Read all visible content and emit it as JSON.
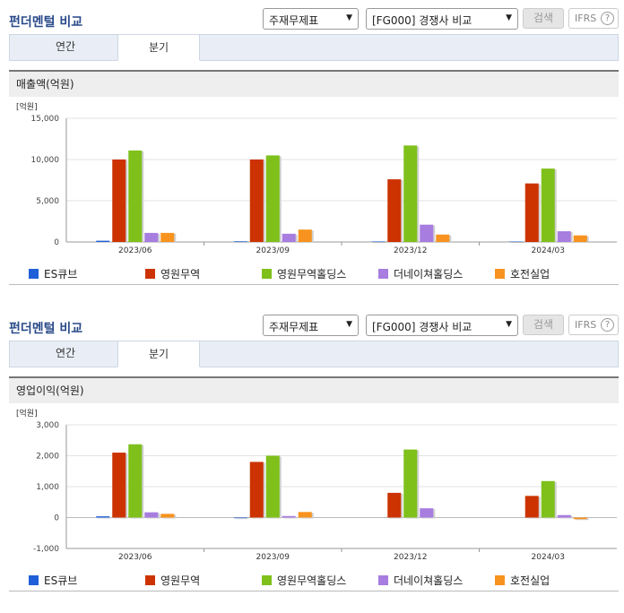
{
  "toolbar": {
    "title": "펀더멘털 비교",
    "select_statement": "주재무제표",
    "select_peer": "[FG000] 경쟁사 비교",
    "search_label": "검색",
    "ifrs_label": "IFRS",
    "help_label": "?"
  },
  "tabs": [
    "연간",
    "분기"
  ],
  "colors": {
    "ES큐브": "#1f5fd8",
    "영원무역": "#cc3300",
    "영원무역홀딩스": "#7fc01b",
    "더네이쳐홀딩스": "#a77de0",
    "호전실업": "#f7931e"
  },
  "chart_data": [
    {
      "type": "bar",
      "title": "매출액(억원)",
      "unit": "[억원]",
      "categories": [
        "2023/06",
        "2023/09",
        "2023/12",
        "2024/03"
      ],
      "ylim": [
        0,
        15000
      ],
      "yticks": [
        0,
        5000,
        10000,
        15000
      ],
      "ytick_labels": [
        "0",
        "5,000",
        "10,000",
        "15,000"
      ],
      "series": [
        {
          "name": "ES큐브",
          "values": [
            150,
            80,
            60,
            50
          ]
        },
        {
          "name": "영원무역",
          "values": [
            10000,
            10000,
            7600,
            7100
          ]
        },
        {
          "name": "영원무역홀딩스",
          "values": [
            11100,
            10500,
            11700,
            8900
          ]
        },
        {
          "name": "더네이쳐홀딩스",
          "values": [
            1100,
            1000,
            2100,
            1300
          ]
        },
        {
          "name": "호전실업",
          "values": [
            1100,
            1500,
            900,
            800
          ]
        }
      ]
    },
    {
      "type": "bar",
      "title": "영업이익(억원)",
      "unit": "[억원]",
      "categories": [
        "2023/06",
        "2023/09",
        "2023/12",
        "2024/03"
      ],
      "ylim": [
        -1000,
        3000
      ],
      "yticks": [
        -1000,
        0,
        1000,
        2000,
        3000
      ],
      "ytick_labels": [
        "-1,000",
        "0",
        "1,000",
        "2,000",
        "3,000"
      ],
      "series": [
        {
          "name": "ES큐브",
          "values": [
            40,
            -20,
            0,
            0
          ]
        },
        {
          "name": "영원무역",
          "values": [
            2100,
            1800,
            800,
            700
          ]
        },
        {
          "name": "영원무역홀딩스",
          "values": [
            2370,
            2000,
            2200,
            1180
          ]
        },
        {
          "name": "더네이쳐홀딩스",
          "values": [
            170,
            50,
            300,
            80
          ]
        },
        {
          "name": "호전실업",
          "values": [
            120,
            180,
            0,
            -50
          ]
        }
      ]
    }
  ]
}
